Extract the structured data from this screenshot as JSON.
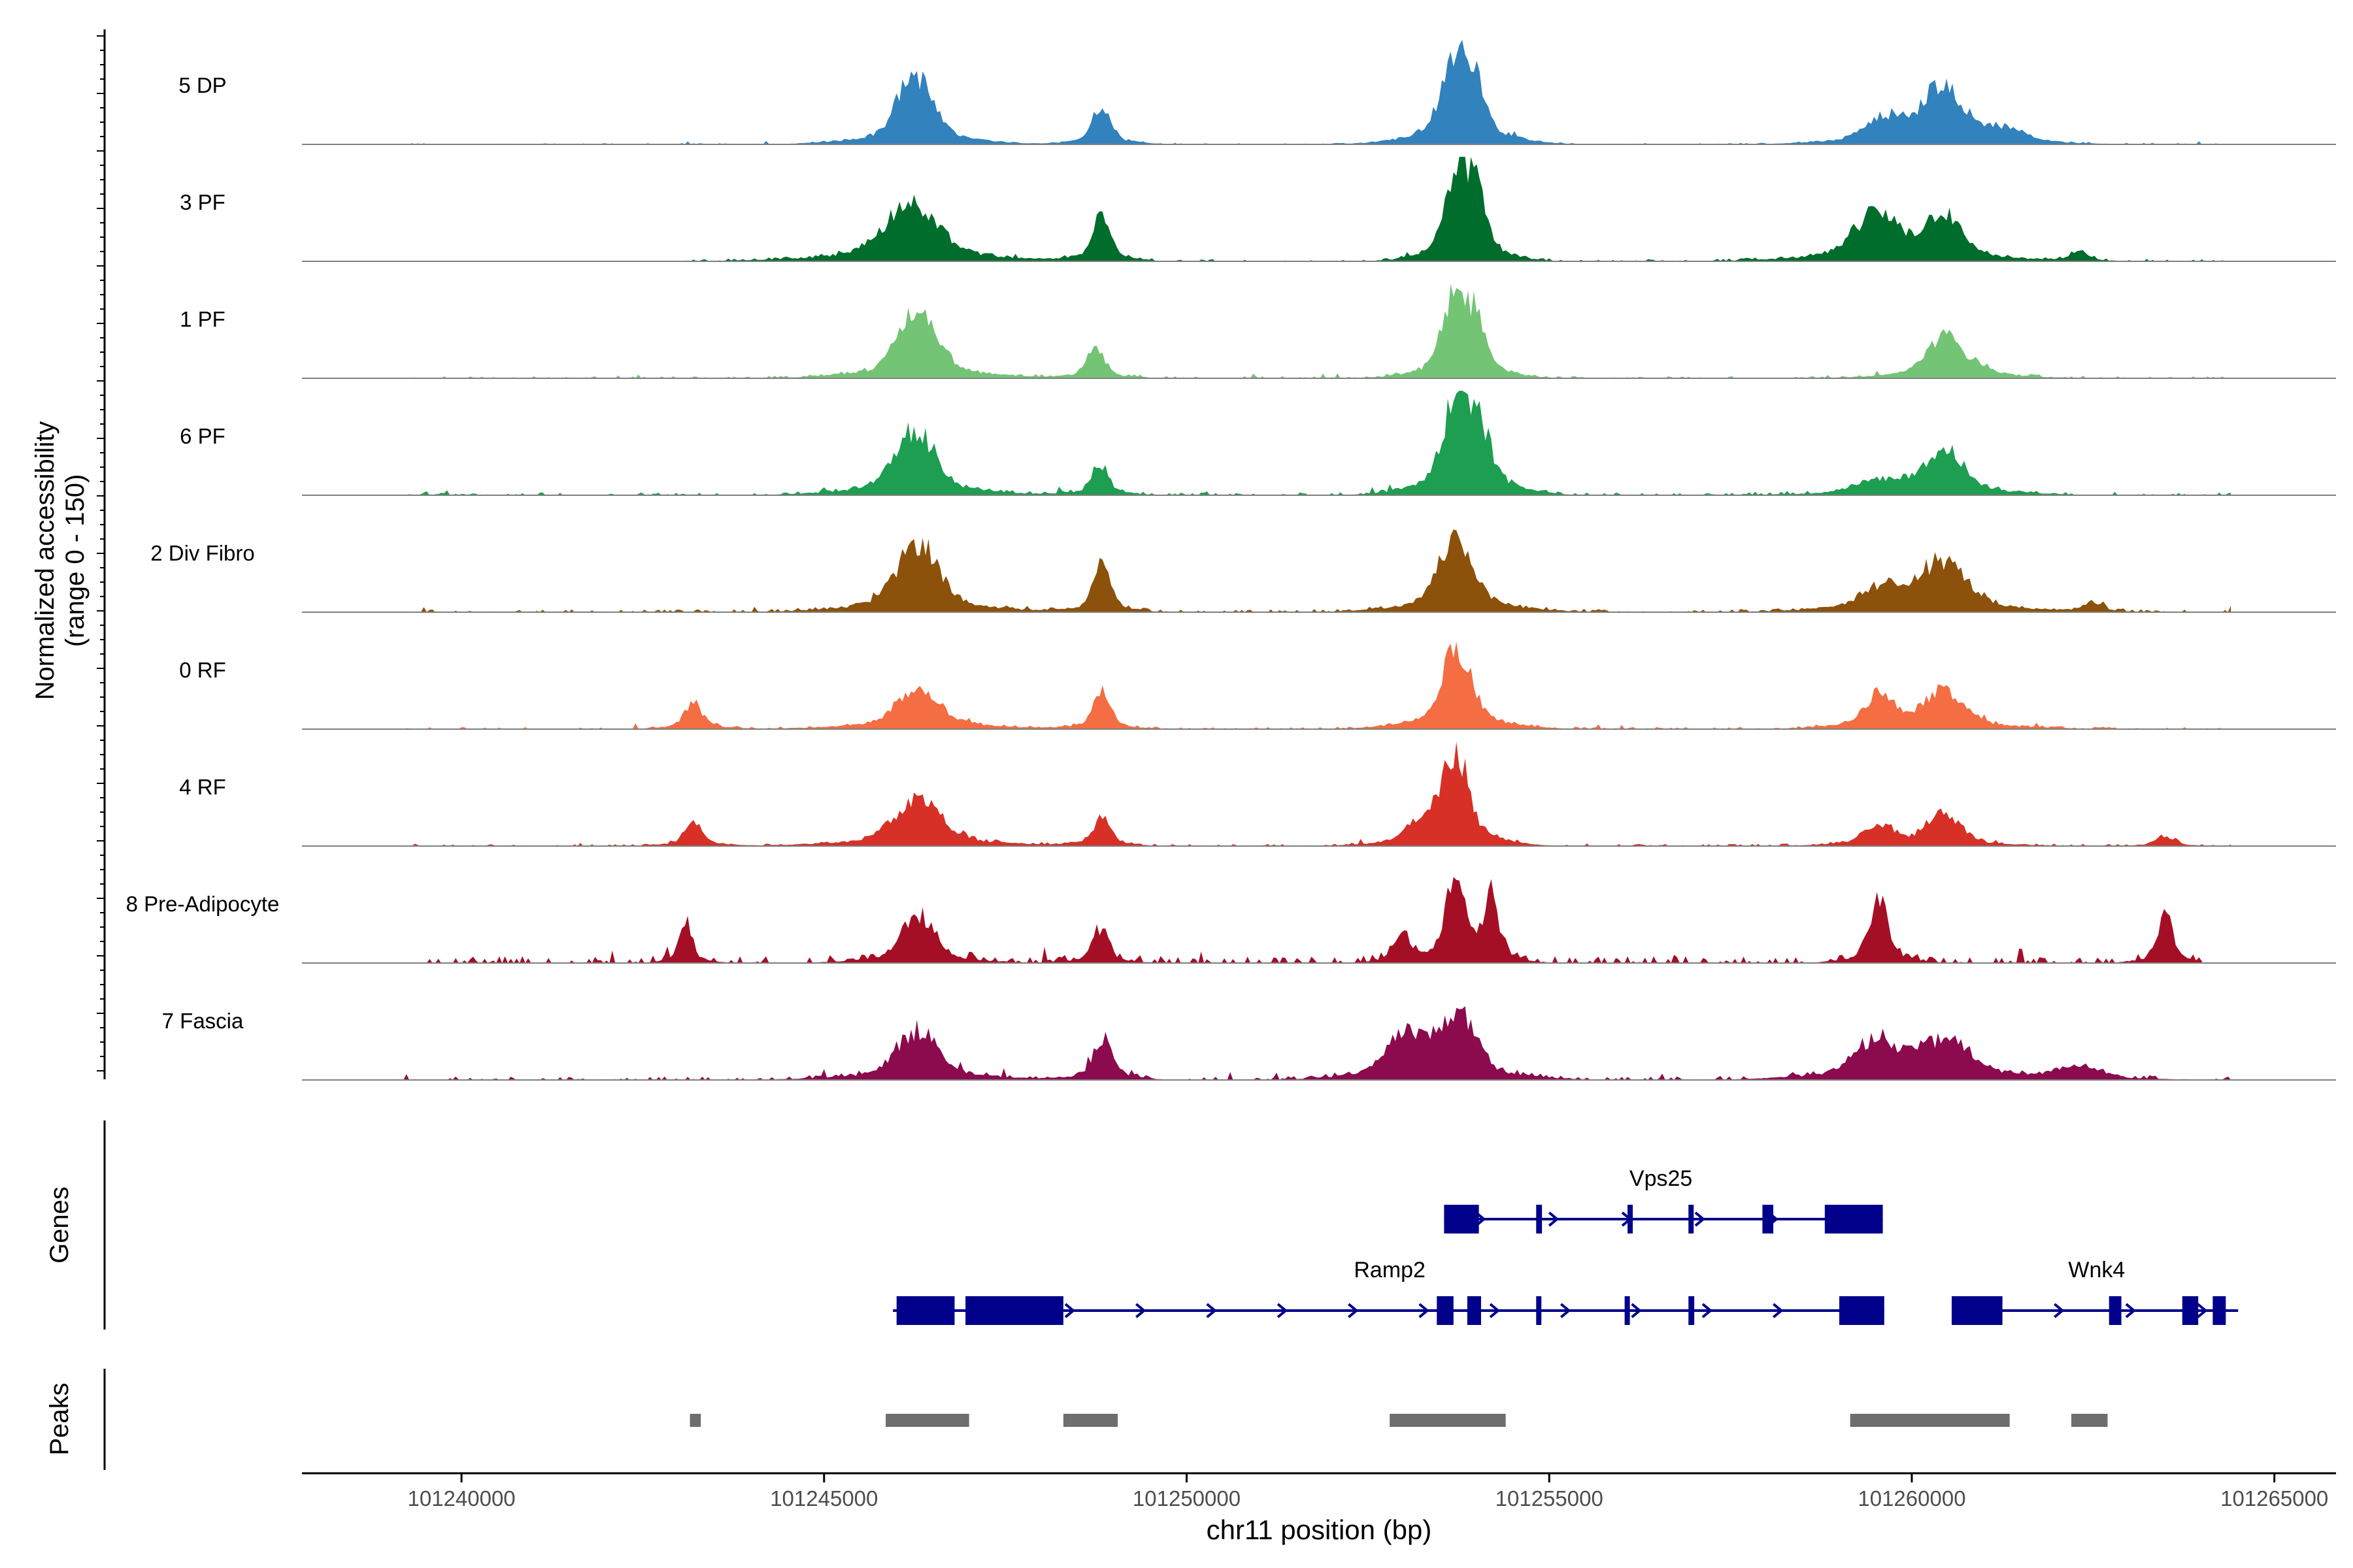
{
  "chart_data": {
    "type": "area",
    "title": "",
    "region": "chr11",
    "xlabel": "chr11 position (bp)",
    "ylabel_line1": "Normalized accessibility",
    "ylabel_line2": "(range 0 - 150)",
    "xlim": [
      101237800,
      101265850
    ],
    "ylim": [
      0,
      150
    ],
    "x_ticks": [
      101240000,
      101245000,
      101250000,
      101255000,
      101260000,
      101265000
    ],
    "x_tick_labels": [
      "101240000",
      "101245000",
      "101250000",
      "101255000",
      "101260000",
      "101265000"
    ],
    "genes_label": "Genes",
    "peaks_label": "Peaks",
    "tracks": [
      {
        "name": "5 DP",
        "color": "#3182BD",
        "peaks": [
          [
            101246250,
            85,
            230
          ],
          [
            101248830,
            45,
            120
          ],
          [
            101253720,
            100,
            200
          ],
          [
            101254000,
            50,
            130
          ],
          [
            101259620,
            30,
            250
          ],
          [
            101260420,
            70,
            250
          ],
          [
            101261200,
            15,
            300
          ]
        ],
        "noise": 2,
        "noise_range": [
          101239200,
          101264200
        ]
      },
      {
        "name": "3 PF",
        "color": "#006D2C",
        "peaks": [
          [
            101246200,
            70,
            350
          ],
          [
            101248830,
            55,
            110
          ],
          [
            101253720,
            105,
            140
          ],
          [
            101254000,
            75,
            130
          ],
          [
            101259500,
            55,
            300
          ],
          [
            101260420,
            55,
            230
          ],
          [
            101262300,
            12,
            120
          ]
        ],
        "noise": 3,
        "noise_range": [
          101243000,
          101264400
        ]
      },
      {
        "name": "1 PF",
        "color": "#74C476",
        "peaks": [
          [
            101246300,
            85,
            250
          ],
          [
            101248750,
            35,
            120
          ],
          [
            101253700,
            100,
            160
          ],
          [
            101254000,
            55,
            120
          ],
          [
            101260440,
            50,
            220
          ],
          [
            101260900,
            10,
            200
          ]
        ],
        "noise": 3,
        "noise_range": [
          101239200,
          101264400
        ]
      },
      {
        "name": "6 PF",
        "color": "#1D9E50",
        "peaks": [
          [
            101246250,
            80,
            260
          ],
          [
            101248800,
            38,
            110
          ],
          [
            101253720,
            110,
            180
          ],
          [
            101254050,
            65,
            150
          ],
          [
            101260440,
            55,
            250
          ],
          [
            101259600,
            15,
            350
          ]
        ],
        "noise": 4,
        "noise_range": [
          101239200,
          101264400
        ]
      },
      {
        "name": "2 Div Fibro",
        "color": "#8C510A",
        "peaks": [
          [
            101246300,
            85,
            270
          ],
          [
            101248830,
            60,
            110
          ],
          [
            101253720,
            90,
            230
          ],
          [
            101259600,
            25,
            300
          ],
          [
            101260440,
            60,
            300
          ],
          [
            101262500,
            12,
            120
          ]
        ],
        "noise": 4,
        "noise_range": [
          101239200,
          101264400
        ]
      },
      {
        "name": "0 RF",
        "color": "#F46D43",
        "peaks": [
          [
            101243200,
            30,
            120
          ],
          [
            101246300,
            45,
            300
          ],
          [
            101248830,
            45,
            110
          ],
          [
            101253720,
            95,
            200
          ],
          [
            101259550,
            40,
            180
          ],
          [
            101260440,
            45,
            280
          ]
        ],
        "noise": 3,
        "noise_range": [
          101239200,
          101264400
        ]
      },
      {
        "name": "4 RF",
        "color": "#D73027",
        "peaks": [
          [
            101243200,
            28,
            120
          ],
          [
            101246300,
            60,
            300
          ],
          [
            101248830,
            35,
            110
          ],
          [
            101253720,
            110,
            160
          ],
          [
            101253300,
            30,
            220
          ],
          [
            101259550,
            25,
            200
          ],
          [
            101260440,
            40,
            220
          ],
          [
            101263500,
            12,
            120
          ]
        ],
        "noise": 3,
        "noise_range": [
          101239200,
          101264400
        ]
      },
      {
        "name": "8 Pre-Adipocyte",
        "color": "#A50F26",
        "peaks": [
          [
            101243100,
            50,
            80
          ],
          [
            101246300,
            60,
            200
          ],
          [
            101248800,
            40,
            110
          ],
          [
            101253700,
            105,
            120
          ],
          [
            101254200,
            75,
            100
          ],
          [
            101259550,
            75,
            120
          ],
          [
            101263500,
            55,
            100
          ],
          [
            101252950,
            35,
            100
          ]
        ],
        "noise": 10,
        "noise_range": [
          101239200,
          101264000
        ]
      },
      {
        "name": "7 Fascia",
        "color": "#8C0A4E",
        "peaks": [
          [
            101246300,
            60,
            280
          ],
          [
            101248850,
            50,
            120
          ],
          [
            101253000,
            55,
            220
          ],
          [
            101253720,
            80,
            240
          ],
          [
            101259500,
            45,
            280
          ],
          [
            101260450,
            45,
            350
          ],
          [
            101262300,
            15,
            300
          ]
        ],
        "noise": 5,
        "noise_range": [
          101239200,
          101264400
        ]
      }
    ],
    "genes": [
      {
        "name": "Vps25",
        "strand": "+",
        "start": 101253550,
        "end": 101259600,
        "exons": [
          [
            101253550,
            101254030
          ],
          [
            101254820,
            101254900
          ],
          [
            101256080,
            101256150
          ],
          [
            101256920,
            101256980
          ],
          [
            101257940,
            101258090
          ],
          [
            101258800,
            101259600
          ]
        ]
      },
      {
        "name": "Ramp2",
        "strand": "+",
        "start": 101245950,
        "end": 101259620,
        "exons": [
          [
            101246000,
            101246800
          ],
          [
            101246950,
            101248300
          ],
          [
            101253450,
            101253680
          ],
          [
            101253870,
            101254060
          ],
          [
            101254820,
            101254880
          ],
          [
            101256040,
            101256110
          ],
          [
            101256920,
            101257000
          ],
          [
            101259000,
            101259620
          ]
        ]
      },
      {
        "name": "Wnk4",
        "strand": "+",
        "start": 101260550,
        "end": 101264500,
        "exons": [
          [
            101260550,
            101261250
          ],
          [
            101262720,
            101262890
          ],
          [
            101263730,
            101263950
          ],
          [
            101264150,
            101264330
          ]
        ]
      }
    ],
    "peak_regions": [
      [
        101243150,
        101243300
      ],
      [
        101245850,
        101247000
      ],
      [
        101248300,
        101249050
      ],
      [
        101252800,
        101254400
      ],
      [
        101259150,
        101261350
      ],
      [
        101262200,
        101262700
      ]
    ]
  }
}
